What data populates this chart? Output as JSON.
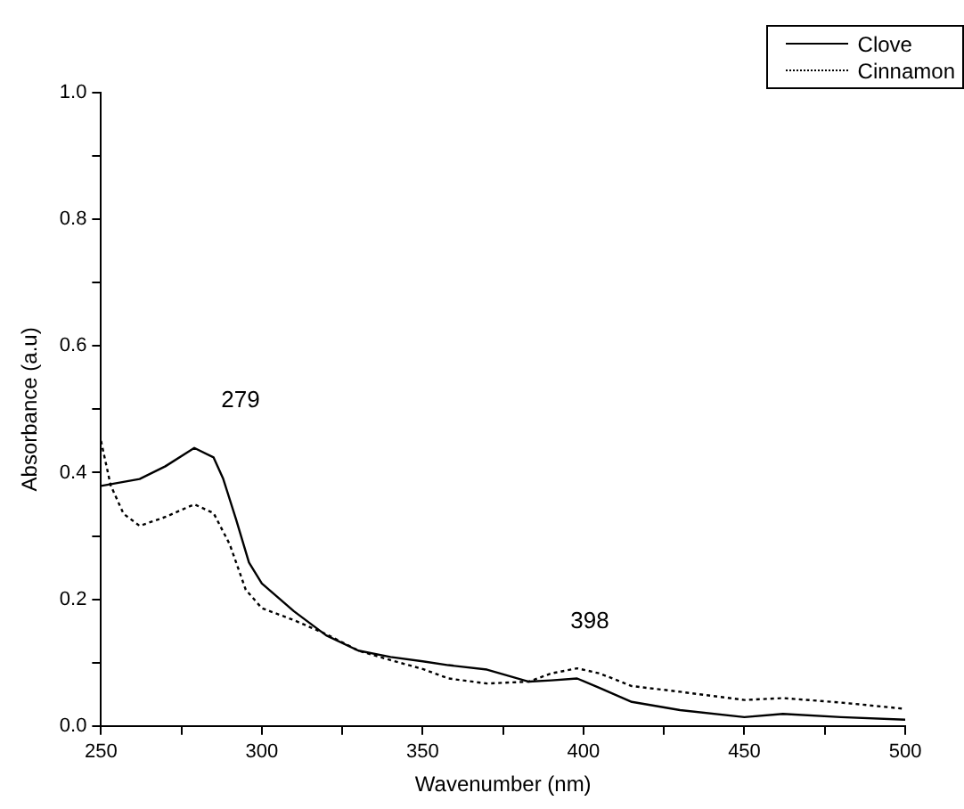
{
  "chart_data": {
    "type": "line",
    "xlabel": "Wavenumber (nm)",
    "ylabel": "Absorbance (a.u)",
    "xlim": [
      250,
      500
    ],
    "ylim": [
      0,
      1.0
    ],
    "xticks": [
      250,
      {
        "value": 275,
        "label": null
      },
      300,
      {
        "value": 325,
        "label": null
      },
      350,
      {
        "value": 375,
        "label": null
      },
      400,
      {
        "value": 425,
        "label": null
      },
      450,
      {
        "value": 475,
        "label": null
      },
      500
    ],
    "yticks": [
      {
        "value": 0,
        "label": "0.0"
      },
      {
        "value": 0.1,
        "label": null
      },
      0.2,
      {
        "value": 0.3,
        "label": null
      },
      0.4,
      {
        "value": 0.5,
        "label": null
      },
      0.6,
      {
        "value": 0.7,
        "label": null
      },
      0.8,
      {
        "value": 0.9,
        "label": null
      },
      {
        "value": 1,
        "label": "1.0"
      }
    ],
    "grid": false,
    "legend": "top right",
    "marker": "none",
    "annotations": [
      "279",
      "398"
    ],
    "series": [
      {
        "name": "Clove",
        "color": "#000000",
        "line_style": "solid",
        "x": [
          250,
          262,
          270,
          279,
          285,
          288,
          292,
          296,
          300,
          310,
          320,
          330,
          340,
          350,
          358,
          370,
          383,
          390,
          398,
          405,
          415,
          430,
          450,
          462,
          480,
          500
        ],
        "values": [
          0.379,
          0.39,
          0.41,
          0.439,
          0.424,
          0.39,
          0.326,
          0.258,
          0.225,
          0.181,
          0.143,
          0.119,
          0.109,
          0.102,
          0.096,
          0.089,
          0.07,
          0.072,
          0.075,
          0.06,
          0.038,
          0.025,
          0.014,
          0.019,
          0.014,
          0.01
        ]
      },
      {
        "name": "Cinnamon",
        "color": "#000000",
        "line_style": "dotted",
        "x": [
          250,
          253,
          257,
          262,
          270,
          279,
          285,
          290,
          295,
          300,
          310,
          320,
          330,
          340,
          350,
          358,
          370,
          383,
          390,
          398,
          405,
          415,
          430,
          450,
          462,
          480,
          500
        ],
        "values": [
          0.45,
          0.38,
          0.335,
          0.316,
          0.33,
          0.35,
          0.336,
          0.287,
          0.215,
          0.186,
          0.167,
          0.145,
          0.119,
          0.104,
          0.09,
          0.075,
          0.067,
          0.07,
          0.083,
          0.091,
          0.083,
          0.063,
          0.054,
          0.041,
          0.044,
          0.037,
          0.027
        ]
      }
    ]
  }
}
